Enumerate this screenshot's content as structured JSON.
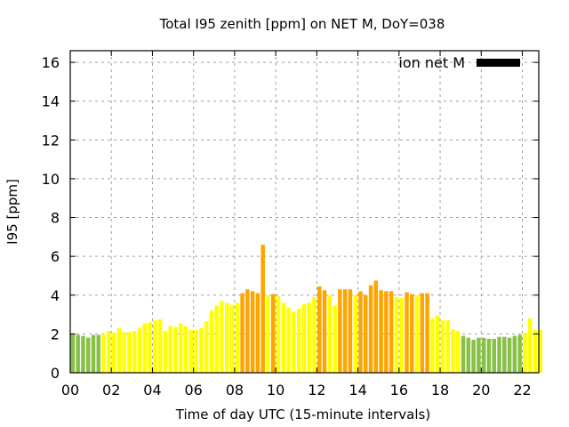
{
  "chart_data": {
    "type": "bar",
    "title": "Total I95 zenith [ppm] on NET M, DoY=038",
    "xlabel": "Time of day UTC (15-minute intervals)",
    "ylabel": "I95 [ppm]",
    "xlim": [
      0,
      22.8
    ],
    "ylim": [
      0,
      16.6
    ],
    "x_ticks": [
      0,
      2,
      4,
      6,
      8,
      10,
      12,
      14,
      16,
      18,
      20,
      22
    ],
    "x_tick_labels": [
      "00",
      "02",
      "04",
      "06",
      "08",
      "10",
      "12",
      "14",
      "16",
      "18",
      "20",
      "22"
    ],
    "y_ticks": [
      0,
      2,
      4,
      6,
      8,
      10,
      12,
      14,
      16
    ],
    "y_tick_labels": [
      "0",
      "2",
      "4",
      "6",
      "8",
      "10",
      "12",
      "14",
      "16"
    ],
    "grid": true,
    "interval_hours": 0.25,
    "legend": {
      "label": "ion net M",
      "color": "#000000",
      "placement": "top-right"
    },
    "category_colors": {
      "low": "#88c147",
      "mid": "#ffff00",
      "high": "#ffa500"
    },
    "values": [
      2.0,
      1.95,
      1.9,
      1.8,
      1.95,
      1.95,
      2.0,
      2.15,
      2.05,
      2.3,
      2.1,
      2.1,
      2.15,
      2.3,
      2.55,
      2.6,
      2.7,
      2.75,
      2.15,
      2.4,
      2.35,
      2.55,
      2.4,
      2.2,
      2.2,
      2.3,
      2.65,
      3.2,
      3.45,
      3.7,
      3.6,
      3.5,
      3.6,
      4.1,
      4.3,
      4.2,
      4.1,
      6.6,
      4.0,
      4.05,
      3.95,
      3.6,
      3.35,
      3.15,
      3.3,
      3.55,
      3.6,
      3.9,
      4.45,
      4.25,
      4.0,
      3.45,
      4.3,
      4.3,
      4.3,
      4.0,
      4.2,
      4.0,
      4.5,
      4.75,
      4.25,
      4.2,
      4.2,
      3.9,
      3.85,
      4.15,
      4.05,
      4.0,
      4.1,
      4.1,
      2.8,
      2.95,
      2.7,
      2.7,
      2.25,
      2.15,
      1.9,
      1.8,
      1.7,
      1.8,
      1.8,
      1.75,
      1.75,
      1.85,
      1.85,
      1.8,
      1.9,
      1.95,
      2.05,
      2.8,
      2.2,
      2.2
    ],
    "categories": [
      "low",
      "low",
      "low",
      "low",
      "low",
      "low",
      "mid",
      "mid",
      "mid",
      "mid",
      "mid",
      "mid",
      "mid",
      "mid",
      "mid",
      "mid",
      "mid",
      "mid",
      "mid",
      "mid",
      "mid",
      "mid",
      "mid",
      "mid",
      "mid",
      "mid",
      "mid",
      "mid",
      "mid",
      "mid",
      "mid",
      "mid",
      "mid",
      "high",
      "high",
      "high",
      "high",
      "high",
      "mid",
      "high",
      "mid",
      "mid",
      "mid",
      "mid",
      "mid",
      "mid",
      "mid",
      "mid",
      "high",
      "high",
      "mid",
      "mid",
      "high",
      "high",
      "high",
      "mid",
      "high",
      "high",
      "high",
      "high",
      "high",
      "high",
      "high",
      "mid",
      "mid",
      "high",
      "high",
      "mid",
      "high",
      "high",
      "mid",
      "mid",
      "mid",
      "mid",
      "mid",
      "mid",
      "low",
      "low",
      "low",
      "low",
      "low",
      "low",
      "low",
      "low",
      "low",
      "low",
      "low",
      "low",
      "mid",
      "mid",
      "mid",
      "mid"
    ]
  }
}
